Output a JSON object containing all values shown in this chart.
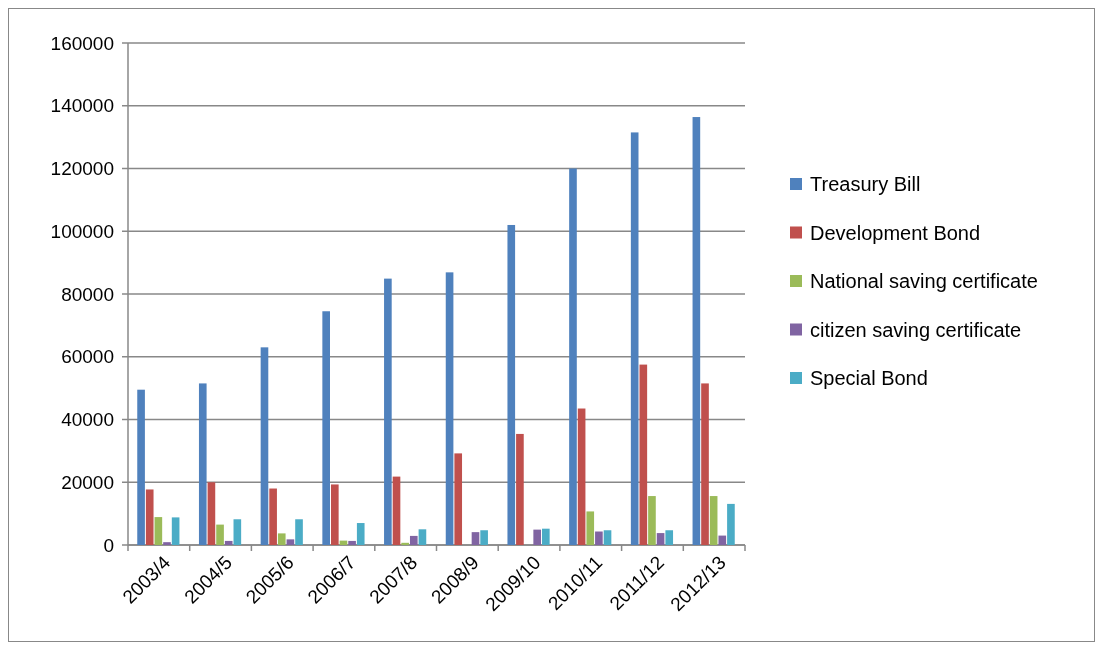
{
  "chart_data": {
    "type": "bar",
    "categories": [
      "2003/4",
      "2004/5",
      "2005/6",
      "2006/7",
      "2007/8",
      "2008/9",
      "2009/10",
      "2010/11",
      "2011/12",
      "2012/13"
    ],
    "series": [
      {
        "name": "Treasury Bill",
        "color": "#4f81bd",
        "values": [
          49500,
          51500,
          63000,
          74500,
          84900,
          86900,
          102000,
          120000,
          131500,
          136400
        ]
      },
      {
        "name": "Development Bond",
        "color": "#c0504d",
        "values": [
          17700,
          20000,
          18000,
          19300,
          21800,
          29200,
          35400,
          43500,
          57500,
          51500
        ]
      },
      {
        "name": "National saving certificate",
        "color": "#9bbb59",
        "values": [
          8900,
          6500,
          3700,
          1400,
          700,
          null,
          null,
          10700,
          15600,
          15600
        ]
      },
      {
        "name": "citizen saving certificate",
        "color": "#8064a2",
        "values": [
          900,
          1300,
          1800,
          1300,
          2900,
          4100,
          4900,
          4300,
          3800,
          3000
        ]
      },
      {
        "name": "Special Bond",
        "color": "#4bacc6",
        "values": [
          8800,
          8200,
          8200,
          7000,
          5000,
          4700,
          5200,
          4700,
          4700,
          13100
        ]
      }
    ],
    "ylim": [
      0,
      160000
    ],
    "yticks": [
      0,
      20000,
      40000,
      60000,
      80000,
      100000,
      120000,
      140000,
      160000
    ],
    "grid": "y",
    "legend": "right"
  }
}
